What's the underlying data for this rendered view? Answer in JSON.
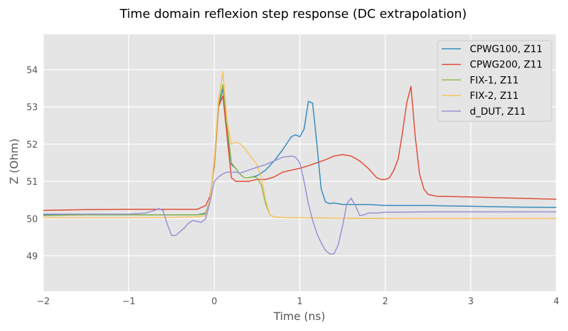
{
  "chart_data": {
    "type": "line",
    "title": "Time domain reflexion step response (DC extrapolation)",
    "xlabel": "Time (ns)",
    "ylabel": "Z (Ohm)",
    "xlim": [
      -2,
      4
    ],
    "ylim": [
      48.05,
      54.95
    ],
    "xticks": [
      -2,
      -1,
      0,
      1,
      2,
      3,
      4
    ],
    "xtick_labels": [
      "−2",
      "−1",
      "0",
      "1",
      "2",
      "3",
      "4"
    ],
    "yticks": [
      49,
      50,
      51,
      52,
      53,
      54
    ],
    "ytick_labels": [
      "49",
      "50",
      "51",
      "52",
      "53",
      "54"
    ],
    "grid": true,
    "background": "#e5e5e5",
    "legend_position": "top-right",
    "series": [
      {
        "name": "CPWG100, Z11",
        "color": "#348abd",
        "x": [
          -2,
          -1.5,
          -1,
          -0.5,
          -0.2,
          -0.1,
          -0.05,
          0,
          0.05,
          0.1,
          0.15,
          0.2,
          0.25,
          0.3,
          0.35,
          0.4,
          0.5,
          0.6,
          0.7,
          0.8,
          0.9,
          0.95,
          1.0,
          1.05,
          1.1,
          1.15,
          1.2,
          1.25,
          1.3,
          1.35,
          1.4,
          1.45,
          1.5,
          1.6,
          1.8,
          2.0,
          2.2,
          2.5,
          3.0,
          3.5,
          4.0
        ],
        "y": [
          50.1,
          50.1,
          50.1,
          50.1,
          50.1,
          50.15,
          50.5,
          51.5,
          53.0,
          53.5,
          52.3,
          51.45,
          51.35,
          51.2,
          51.1,
          51.1,
          51.15,
          51.3,
          51.55,
          51.85,
          52.2,
          52.25,
          52.2,
          52.4,
          53.15,
          53.1,
          52.0,
          50.8,
          50.45,
          50.4,
          50.42,
          50.4,
          50.38,
          50.38,
          50.38,
          50.35,
          50.35,
          50.35,
          50.33,
          50.31,
          50.3
        ]
      },
      {
        "name": "CPWG200, Z11",
        "color": "#e24a33",
        "x": [
          -2,
          -1.5,
          -1,
          -0.5,
          -0.2,
          -0.1,
          -0.05,
          0,
          0.05,
          0.1,
          0.15,
          0.2,
          0.25,
          0.3,
          0.4,
          0.5,
          0.6,
          0.7,
          0.8,
          0.9,
          1.0,
          1.1,
          1.2,
          1.3,
          1.4,
          1.5,
          1.6,
          1.7,
          1.8,
          1.9,
          1.95,
          2.0,
          2.05,
          2.1,
          2.15,
          2.2,
          2.25,
          2.3,
          2.35,
          2.4,
          2.45,
          2.5,
          2.6,
          3.0,
          3.5,
          4.0
        ],
        "y": [
          50.22,
          50.24,
          50.25,
          50.25,
          50.25,
          50.35,
          50.6,
          51.4,
          53.0,
          53.3,
          52.2,
          51.1,
          51.0,
          51.0,
          51.0,
          51.05,
          51.05,
          51.12,
          51.25,
          51.3,
          51.35,
          51.42,
          51.5,
          51.58,
          51.68,
          51.72,
          51.68,
          51.55,
          51.35,
          51.1,
          51.05,
          51.05,
          51.1,
          51.3,
          51.6,
          52.3,
          53.1,
          53.55,
          52.2,
          51.2,
          50.8,
          50.65,
          50.6,
          50.58,
          50.55,
          50.52
        ]
      },
      {
        "name": "FIX-1, Z11",
        "color": "#8eba42",
        "x": [
          -2,
          -1.5,
          -1,
          -0.5,
          -0.2,
          -0.1,
          -0.05,
          0,
          0.05,
          0.1,
          0.15,
          0.2,
          0.25,
          0.3,
          0.35,
          0.4,
          0.45,
          0.5,
          0.55,
          0.6,
          0.65,
          0.7,
          0.8,
          1.0,
          1.5,
          2.0,
          3.0,
          4.0
        ],
        "y": [
          50.08,
          50.1,
          50.1,
          50.1,
          50.1,
          50.12,
          50.5,
          51.5,
          53.1,
          53.6,
          52.5,
          51.5,
          51.35,
          51.2,
          51.1,
          51.1,
          51.12,
          51.1,
          50.9,
          50.4,
          50.1,
          50.04,
          50.03,
          50.02,
          50.01,
          50.0,
          50.0,
          50.0
        ]
      },
      {
        "name": "FIX-2, Z11",
        "color": "#fbc15e",
        "x": [
          -2,
          -1.5,
          -1,
          -0.5,
          -0.2,
          -0.1,
          -0.05,
          0,
          0.05,
          0.1,
          0.15,
          0.2,
          0.25,
          0.3,
          0.35,
          0.4,
          0.45,
          0.5,
          0.55,
          0.6,
          0.65,
          0.7,
          0.8,
          1.0,
          1.5,
          2.0,
          3.0,
          4.0
        ],
        "y": [
          50.02,
          50.02,
          50.02,
          50.03,
          50.05,
          50.08,
          50.5,
          51.6,
          53.2,
          53.95,
          52.6,
          52.0,
          52.05,
          52.02,
          51.9,
          51.75,
          51.6,
          51.45,
          51.1,
          50.5,
          50.1,
          50.04,
          50.03,
          50.02,
          50.01,
          50.0,
          50.0,
          50.0
        ]
      },
      {
        "name": "d_DUT, Z11",
        "color": "#988ed5",
        "x": [
          -2,
          -1.5,
          -1,
          -0.8,
          -0.7,
          -0.65,
          -0.6,
          -0.55,
          -0.5,
          -0.45,
          -0.4,
          -0.35,
          -0.3,
          -0.25,
          -0.2,
          -0.15,
          -0.1,
          -0.05,
          0,
          0.05,
          0.1,
          0.15,
          0.2,
          0.25,
          0.3,
          0.4,
          0.5,
          0.6,
          0.7,
          0.8,
          0.9,
          0.95,
          1.0,
          1.05,
          1.1,
          1.15,
          1.2,
          1.25,
          1.3,
          1.35,
          1.4,
          1.45,
          1.5,
          1.55,
          1.6,
          1.65,
          1.7,
          1.75,
          1.8,
          1.85,
          1.9,
          2.0,
          2.5,
          3.0,
          4.0
        ],
        "y": [
          50.12,
          50.12,
          50.12,
          50.15,
          50.22,
          50.27,
          50.22,
          49.85,
          49.55,
          49.55,
          49.65,
          49.75,
          49.88,
          49.95,
          49.92,
          49.9,
          50.0,
          50.45,
          51.0,
          51.12,
          51.2,
          51.25,
          51.25,
          51.25,
          51.22,
          51.3,
          51.38,
          51.45,
          51.55,
          51.65,
          51.68,
          51.65,
          51.5,
          51.0,
          50.4,
          49.95,
          49.6,
          49.35,
          49.15,
          49.05,
          49.05,
          49.3,
          49.8,
          50.4,
          50.55,
          50.35,
          50.08,
          50.1,
          50.15,
          50.15,
          50.15,
          50.17,
          50.18,
          50.18,
          50.18
        ]
      }
    ]
  }
}
